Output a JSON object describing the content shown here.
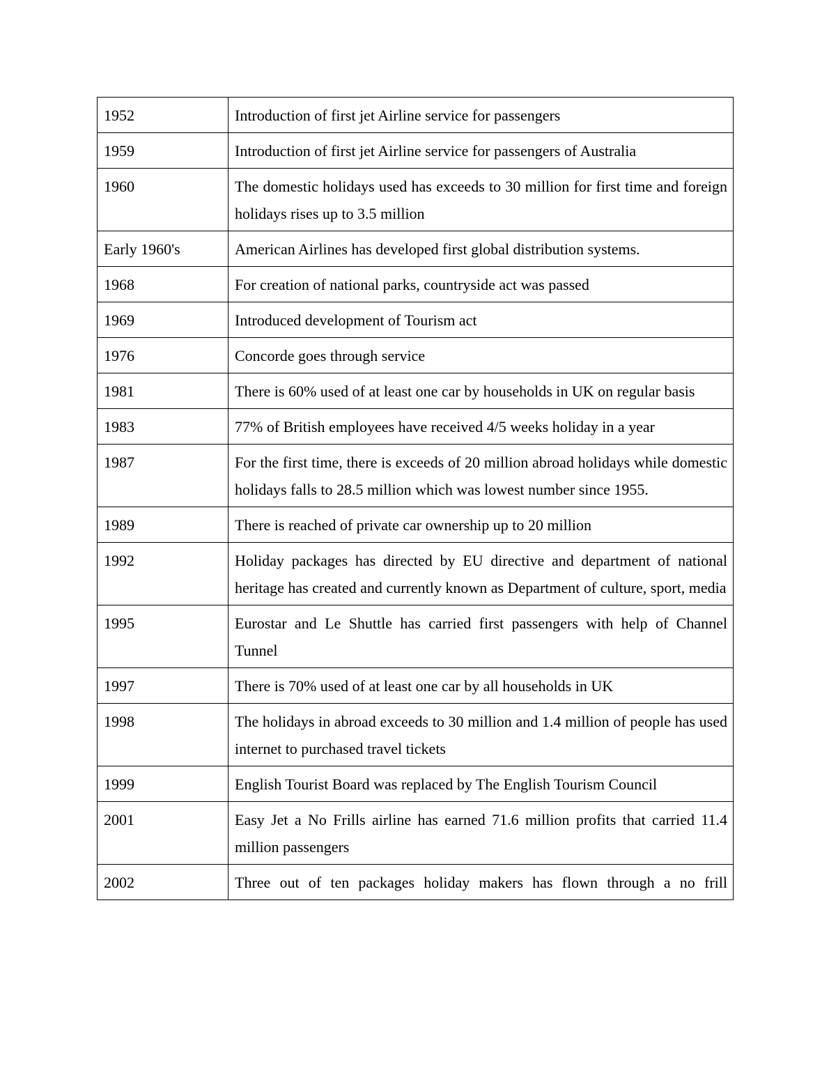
{
  "page": {
    "background_color": "#ffffff",
    "text_color": "#000000",
    "border_color": "#000000"
  },
  "table": {
    "name": "tourism-history-timeline",
    "columns": [
      "year",
      "description"
    ],
    "rows": [
      {
        "year": "1952",
        "description": "Introduction of first jet Airline service for passengers"
      },
      {
        "year": "1959",
        "description": "Introduction of first jet Airline service for passengers of Australia"
      },
      {
        "year": "1960",
        "description": "The domestic holidays used has exceeds to 30 million for first time and foreign holidays rises up to 3.5 million"
      },
      {
        "year": "Early 1960's",
        "description": "American Airlines has developed first global distribution systems."
      },
      {
        "year": "1968",
        "description": "For creation of national parks, countryside act was passed"
      },
      {
        "year": "1969",
        "description": "Introduced development of Tourism act"
      },
      {
        "year": "1976",
        "description": "Concorde goes through service"
      },
      {
        "year": "1981",
        "description": "There is 60% used of at least one car by households in UK on regular basis"
      },
      {
        "year": "1983",
        "description": "77% of British employees have received 4/5 weeks holiday in a year"
      },
      {
        "year": "1987",
        "description": "For the first time, there is exceeds of 20 million abroad holidays while domestic holidays falls to 28.5 million which was lowest number since 1955."
      },
      {
        "year": "1989",
        "description": "There is reached of private car ownership up to 20 million"
      },
      {
        "year": "1992",
        "description": "Holiday packages has directed by EU directive and department of national heritage has created and currently known as Department of culture, sport, media"
      },
      {
        "year": "1995",
        "description": "Eurostar and Le Shuttle has carried first passengers with help of Channel Tunnel"
      },
      {
        "year": "1997",
        "description": "There is 70% used of at least one car by all households in UK"
      },
      {
        "year": "1998",
        "description": "The holidays in abroad exceeds to 30 million and 1.4 million of people has used internet to purchased travel tickets"
      },
      {
        "year": "1999",
        "description": "English Tourist Board was replaced by The English Tourism Council"
      },
      {
        "year": "2001",
        "description": "Easy Jet a No Frills airline has earned 71.6 million profits that carried 11.4 million passengers"
      },
      {
        "year": "2002",
        "description": "Three out of ten packages holiday makers has flown through a no frill",
        "truncated": true
      }
    ]
  }
}
